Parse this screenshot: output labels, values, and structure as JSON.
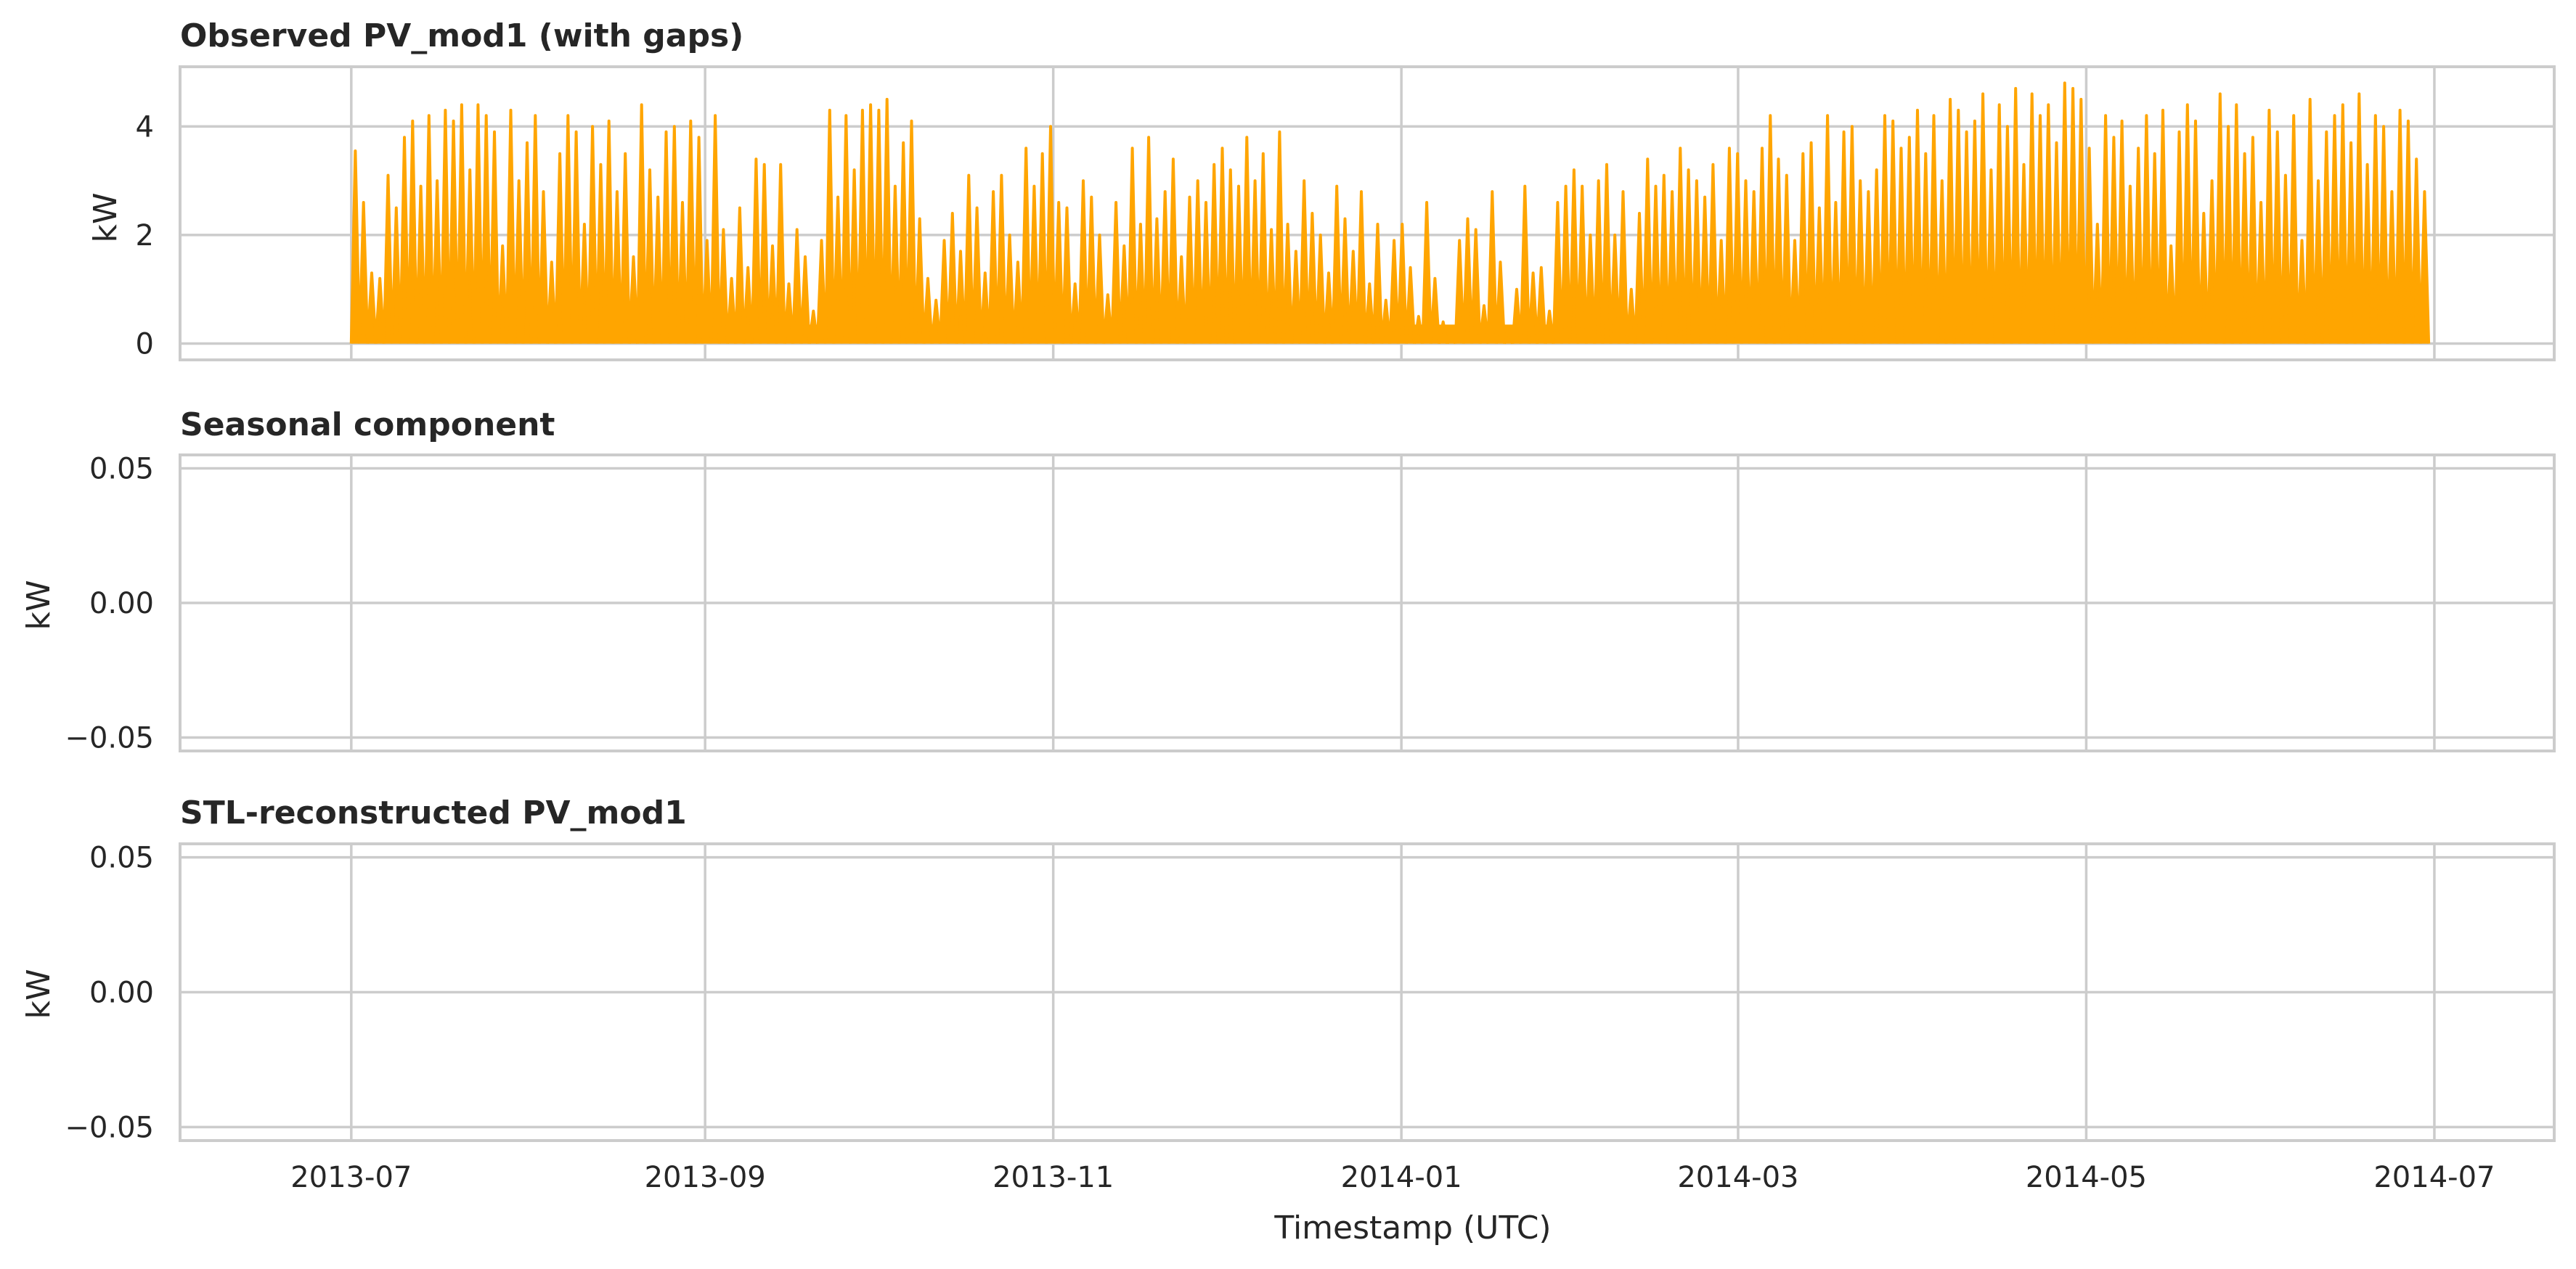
{
  "chart_data": [
    {
      "type": "line",
      "title": "Observed PV_mod1 (with gaps)",
      "ylabel": "kW",
      "xlabel": "",
      "xlim": [
        "2013-06-01",
        "2014-07-22"
      ],
      "ylim": [
        -0.3,
        5.1
      ],
      "yticks": [
        0,
        2,
        4
      ],
      "ytick_labels": [
        "0",
        "2",
        "4"
      ],
      "grid": true,
      "series": [
        {
          "color": "#ffa500",
          "x_start": "2013-07-01",
          "x_end": "2014-06-30",
          "sampling": "hourly (daily PV generation cycle)",
          "daily_peak_kw": [
            3.55,
            2.6,
            1.3,
            1.2,
            3.1,
            2.5,
            3.8,
            4.1,
            2.9,
            4.2,
            3.0,
            4.3,
            4.1,
            4.4,
            3.2,
            4.4,
            4.2,
            3.9,
            1.8,
            4.3,
            3.0,
            3.7,
            4.2,
            2.8,
            1.5,
            3.5,
            4.2,
            3.9,
            2.2,
            4.0,
            3.3,
            4.1,
            2.8,
            3.5,
            1.6,
            4.4,
            3.2,
            2.7,
            3.9,
            4.0,
            2.6,
            4.1,
            3.8,
            1.9,
            4.2,
            2.1,
            1.2,
            2.5,
            1.4,
            3.4,
            3.3,
            1.8,
            3.3,
            1.1,
            2.1,
            1.6,
            0.6,
            1.9,
            4.3,
            2.7,
            4.2,
            3.2,
            4.3,
            4.4,
            4.3,
            4.5,
            2.9,
            3.7,
            4.1,
            2.3,
            1.2,
            0.8,
            1.9,
            2.4,
            1.7,
            3.1,
            2.5,
            1.3,
            2.8,
            3.1,
            2.0,
            1.5,
            3.6,
            2.9,
            3.5,
            4.0,
            2.6,
            2.5,
            1.1,
            3.0,
            2.7,
            2.0,
            0.9,
            2.6,
            1.8,
            3.6,
            2.2,
            3.8,
            2.3,
            2.8,
            3.4,
            1.6,
            2.7,
            3.0,
            2.6,
            3.3,
            3.6,
            3.2,
            2.9,
            3.8,
            3.0,
            3.5,
            2.1,
            3.9,
            2.2,
            1.7,
            3.0,
            2.4,
            2.0,
            1.3,
            2.9,
            2.3,
            1.7,
            2.8,
            1.1,
            2.2,
            0.8,
            1.9,
            2.2,
            1.4,
            0.5,
            2.6,
            1.2,
            0.4,
            0.3,
            1.9,
            2.3,
            2.1,
            0.7,
            2.8,
            1.5,
            0.3,
            1.0,
            2.9,
            1.3,
            1.4,
            0.6,
            2.6,
            2.9,
            3.2,
            2.9,
            2.0,
            3.0,
            3.3,
            2.0,
            2.8,
            1.0,
            2.4,
            3.4,
            2.9,
            3.1,
            2.8,
            3.6,
            3.2,
            3.0,
            2.7,
            3.3,
            1.9,
            3.6,
            3.5,
            3.0,
            2.8,
            3.6,
            4.2,
            3.4,
            3.1,
            1.9,
            3.5,
            3.7,
            2.5,
            4.2,
            2.6,
            3.9,
            4.0,
            3.0,
            2.8,
            3.2,
            4.2,
            4.1,
            3.6,
            3.8,
            4.3,
            3.5,
            4.2,
            3.0,
            4.5,
            4.3,
            3.9,
            4.1,
            4.6,
            3.2,
            4.4,
            4.0,
            4.7,
            3.3,
            4.6,
            4.2,
            4.4,
            3.7,
            4.8,
            4.7,
            4.5,
            3.6,
            2.2,
            4.2,
            3.8,
            4.1,
            2.9,
            3.6,
            4.2,
            3.5,
            4.3,
            1.8,
            3.9,
            4.4,
            4.1,
            2.4,
            3.0,
            4.6,
            4.0,
            4.4,
            3.5,
            3.8,
            2.6,
            4.3,
            3.9,
            3.1,
            4.2,
            1.9,
            4.5,
            3.0,
            3.9,
            4.2,
            4.4,
            3.7,
            4.6,
            3.3,
            4.2,
            4.0,
            2.8,
            4.3,
            4.1,
            3.4,
            2.8
          ]
        }
      ]
    },
    {
      "type": "line",
      "title": "Seasonal component",
      "ylabel": "kW",
      "xlabel": "",
      "xlim": [
        "2013-06-01",
        "2014-07-22"
      ],
      "ylim": [
        -0.055,
        0.055
      ],
      "yticks": [
        0.05,
        0.0,
        -0.05
      ],
      "ytick_labels": [
        "0.05",
        "0.00",
        "−0.05"
      ],
      "grid": true,
      "series": []
    },
    {
      "type": "line",
      "title": "STL-reconstructed PV_mod1",
      "ylabel": "kW",
      "xlabel": "Timestamp (UTC)",
      "xlim": [
        "2013-06-01",
        "2014-07-22"
      ],
      "ylim": [
        -0.055,
        0.055
      ],
      "yticks": [
        0.05,
        0.0,
        -0.05
      ],
      "ytick_labels": [
        "0.05",
        "0.00",
        "−0.05"
      ],
      "grid": true,
      "series": []
    }
  ],
  "shared_x": {
    "xticks": [
      "2013-07-01",
      "2013-09-01",
      "2013-11-01",
      "2014-01-01",
      "2014-03-01",
      "2014-05-01",
      "2014-07-01"
    ],
    "xtick_labels": [
      "2013-07",
      "2013-09",
      "2013-11",
      "2014-01",
      "2014-03",
      "2014-05",
      "2014-07"
    ]
  }
}
